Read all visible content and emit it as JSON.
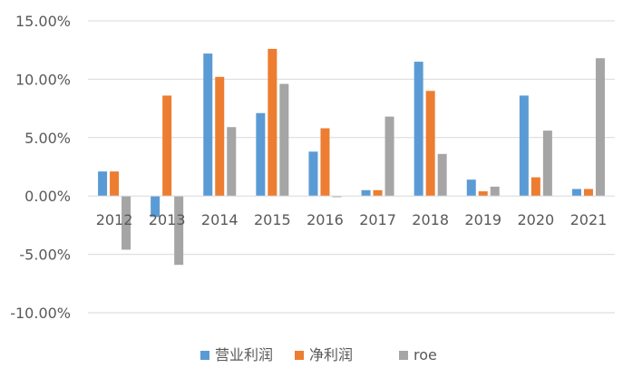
{
  "chart_data": {
    "type": "bar",
    "categories": [
      "2012",
      "2013",
      "2014",
      "2015",
      "2016",
      "2017",
      "2018",
      "2019",
      "2020",
      "2021"
    ],
    "series": [
      {
        "name": "营业利润",
        "color": "#5B9BD5",
        "values": [
          2.1,
          -1.8,
          12.2,
          7.1,
          3.8,
          0.5,
          11.5,
          1.4,
          8.6,
          0.6
        ]
      },
      {
        "name": "净利润",
        "color": "#ED7D31",
        "values": [
          2.1,
          8.6,
          10.2,
          12.6,
          5.8,
          0.5,
          9.0,
          0.4,
          1.6,
          0.6
        ]
      },
      {
        "name": "roe",
        "color": "#A5A5A5",
        "values": [
          -4.6,
          -5.9,
          5.9,
          9.6,
          -0.1,
          6.8,
          3.6,
          0.8,
          5.6,
          11.8
        ]
      }
    ],
    "yticks": [
      "15.00%",
      "10.00%",
      "5.00%",
      "0.00%",
      "-5.00%",
      "-10.00%"
    ],
    "ytick_values": [
      15,
      10,
      5,
      0,
      -5,
      -10
    ],
    "ylim": [
      -10,
      15
    ],
    "grid": true,
    "legend_position": "bottom",
    "gridline_color": "#D9D9D9"
  }
}
